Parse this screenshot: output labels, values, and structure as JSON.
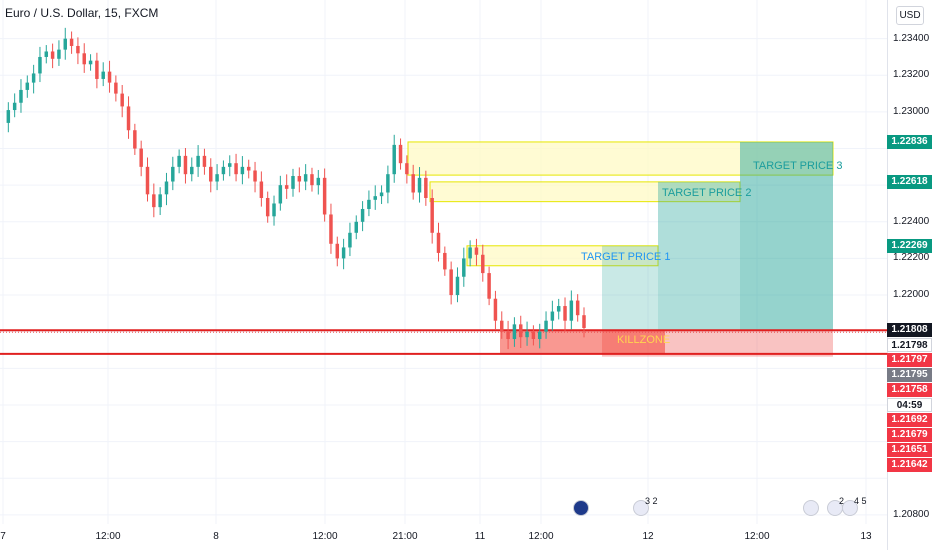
{
  "header": {
    "title": "Euro / U.S. Dollar, 15, FXCM",
    "currency_button": "USD"
  },
  "colors": {
    "up": "#26a69a",
    "down": "#ef5350",
    "target_zone": "#fff9c4",
    "target_border": "#e6e600",
    "killzone": "#f44336",
    "long_profit": "#26a69a",
    "long_loss": "#ef5350"
  },
  "chart_data": {
    "type": "candlestick",
    "y_range": [
      1.2075,
      1.2348
    ],
    "x_ticks": [
      "7",
      "12:00",
      "8",
      "12:00",
      "21:00",
      "11",
      "12:00",
      "12",
      "12:00",
      "13"
    ],
    "y_ticks": [
      "1.23400",
      "1.23200",
      "1.23000",
      "1.22400",
      "1.22200",
      "1.22000",
      "1.20800"
    ],
    "price_path": [
      1.2294,
      1.2301,
      1.2305,
      1.2312,
      1.2316,
      1.2321,
      1.233,
      1.2333,
      1.2329,
      1.2334,
      1.234,
      1.2336,
      1.2332,
      1.2326,
      1.2328,
      1.2318,
      1.2322,
      1.2316,
      1.231,
      1.2303,
      1.229,
      1.228,
      1.227,
      1.2255,
      1.2248,
      1.2255,
      1.2262,
      1.227,
      1.2276,
      1.2266,
      1.227,
      1.2276,
      1.227,
      1.2262,
      1.2266,
      1.227,
      1.2272,
      1.2266,
      1.227,
      1.2268,
      1.2262,
      1.2253,
      1.2243,
      1.225,
      1.226,
      1.2258,
      1.2265,
      1.2262,
      1.2266,
      1.226,
      1.2264,
      1.2244,
      1.2228,
      1.222,
      1.2226,
      1.2234,
      1.224,
      1.2247,
      1.2252,
      1.2254,
      1.2256,
      1.2266,
      1.2282,
      1.2272,
      1.2266,
      1.2256,
      1.2264,
      1.2253,
      1.2234,
      1.2223,
      1.2214,
      1.22,
      1.221,
      1.222,
      1.2226,
      1.2222,
      1.2212,
      1.2198,
      1.2186,
      1.218,
      1.2176,
      1.2184,
      1.2177,
      1.218,
      1.2176,
      1.218,
      1.2186,
      1.2191,
      1.2194,
      1.2186,
      1.2197,
      1.2189,
      1.2182
    ],
    "target_zones": [
      {
        "label": "TARGET PRICE 3",
        "top": 1.22836,
        "bottom": 1.22655
      },
      {
        "label": "TARGET PRICE 2",
        "top": 1.22618,
        "bottom": 1.2251
      },
      {
        "label": "TARGET PRICE 1",
        "top": 1.22269,
        "bottom": 1.2216
      }
    ],
    "killzone": {
      "label": "KILLZONE",
      "top": 1.21808,
      "bottom": 1.2168
    },
    "lines": [
      1.21808,
      1.21679
    ],
    "price_badges": [
      {
        "value": "1.22836",
        "price": 1.22836,
        "color": "#089981"
      },
      {
        "value": "1.22618",
        "price": 1.22618,
        "color": "#089981"
      },
      {
        "value": "1.22269",
        "price": 1.22269,
        "color": "#089981"
      },
      {
        "value": "1.21808",
        "price": 1.21808,
        "color": "#131722"
      },
      {
        "value": "1.21798",
        "price": 1.21798,
        "color": "#ffffff"
      },
      {
        "value": "1.21797",
        "price": 1.21797,
        "color": "#f23645"
      },
      {
        "value": "1.21795",
        "price": 1.21795,
        "color": "#787b86"
      },
      {
        "value": "1.21758",
        "price": 1.21758,
        "color": "#f23645"
      },
      {
        "value": "04:59",
        "price": 1.2172,
        "color": "#ffffff"
      },
      {
        "value": "1.21692",
        "price": 1.21692,
        "color": "#f23645"
      },
      {
        "value": "1.21679",
        "price": 1.21679,
        "color": "#f23645"
      },
      {
        "value": "1.21651",
        "price": 1.21651,
        "color": "#f23645"
      },
      {
        "value": "1.21642",
        "price": 1.21642,
        "color": "#f23645"
      }
    ],
    "events": [
      {
        "flag": "eu-flag-icon",
        "count": ""
      },
      {
        "flag": "us-flag-icon",
        "count": "3 2"
      },
      {
        "flag": "us-flag-icon",
        "count": ""
      },
      {
        "flag": "us-flag-icon",
        "count": "2"
      },
      {
        "flag": "us-flag-icon",
        "count": "4 5"
      }
    ]
  }
}
